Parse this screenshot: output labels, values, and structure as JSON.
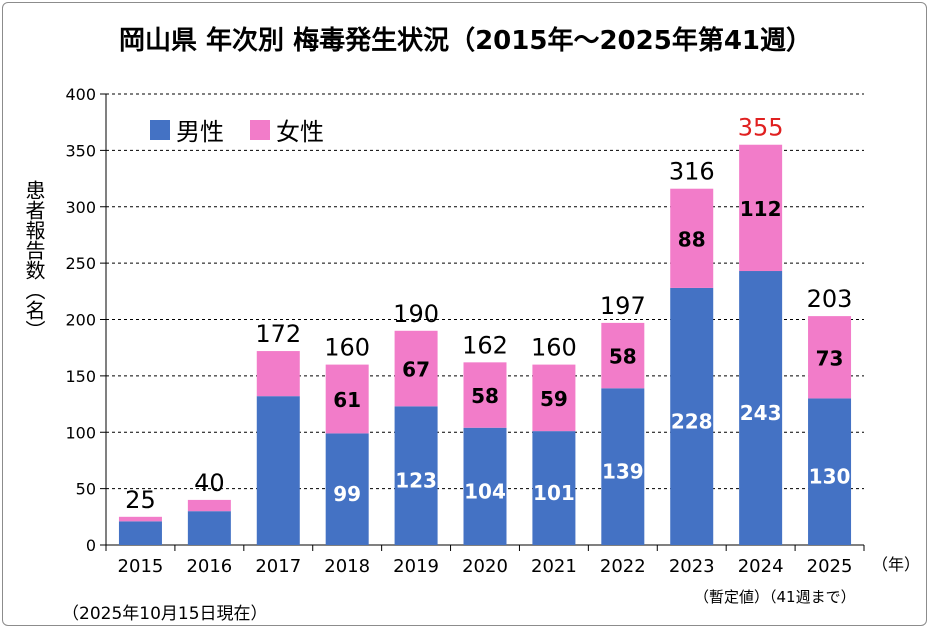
{
  "chart_data": {
    "type": "bar",
    "stacked": true,
    "title": "岡山県 年次別 梅毒発生状況（2015年～2025年第41週）",
    "ylabel": "患者報告数（名）",
    "xunit": "（年）",
    "ylim": [
      0,
      400
    ],
    "yticks": [
      0,
      50,
      100,
      150,
      200,
      250,
      300,
      350,
      400
    ],
    "grid": "horizontal-dashed",
    "legend_position": "top-left",
    "categories": [
      "2015",
      "2016",
      "2017",
      "2018",
      "2019",
      "2020",
      "2021",
      "2022",
      "2023",
      "2024",
      "2025"
    ],
    "series": [
      {
        "name": "男性",
        "color": "#4472c4",
        "values": [
          21,
          30,
          132,
          99,
          123,
          104,
          101,
          139,
          228,
          243,
          130
        ],
        "labels": [
          "",
          "",
          "",
          "99",
          "123",
          "104",
          "101",
          "139",
          "228",
          "243",
          "130"
        ]
      },
      {
        "name": "女性",
        "color": "#f27cc9",
        "values": [
          4,
          10,
          40,
          61,
          67,
          58,
          59,
          58,
          88,
          112,
          73
        ],
        "labels": [
          "",
          "",
          "",
          "61",
          "67",
          "58",
          "59",
          "58",
          "88",
          "112",
          "73"
        ]
      }
    ],
    "totals": [
      "25",
      "40",
      "172",
      "160",
      "190",
      "162",
      "160",
      "197",
      "316",
      "355",
      "203"
    ],
    "highlight_total_color": "#e02020",
    "highlight_index": 9,
    "annotations": {
      "as_of": "（2025年10月15日現在）",
      "provisional": "（暫定値）（41週まで）"
    }
  }
}
